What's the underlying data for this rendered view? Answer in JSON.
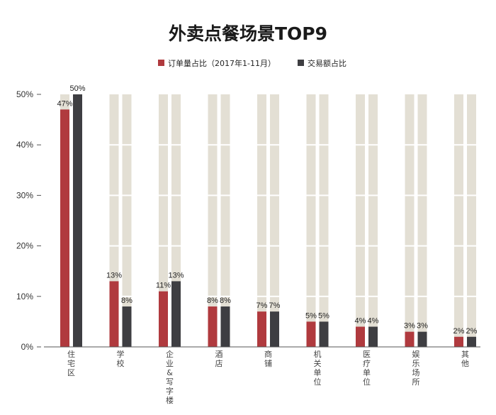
{
  "chart_data": {
    "type": "bar",
    "title": "外卖点餐场景TOP9",
    "categories": [
      "住宅区",
      "学校",
      "企业&写字楼",
      "酒店",
      "商铺",
      "机关单位",
      "医疗单位",
      "娱乐场所",
      "其他"
    ],
    "series": [
      {
        "name": "订单量占比（2017年1-11月）",
        "color": "#b03a3e",
        "values": [
          47,
          13,
          11,
          8,
          7,
          5,
          4,
          3,
          2
        ]
      },
      {
        "name": "交易额占比",
        "color": "#3e3e42",
        "values": [
          50,
          8,
          13,
          8,
          7,
          5,
          4,
          3,
          2
        ]
      }
    ],
    "data_labels": [
      [
        "47%",
        "13%",
        "11%",
        "8%",
        "7%",
        "5%",
        "4%",
        "3%",
        "2%"
      ],
      [
        "50%",
        "8%",
        "13%",
        "8%",
        "7%",
        "5%",
        "4%",
        "3%",
        "2%"
      ]
    ],
    "yticks": [
      "0%",
      "10%",
      "20%",
      "30%",
      "40%",
      "50%"
    ],
    "ylim": [
      0,
      50
    ],
    "background_track_color": "#e3dfd4",
    "legend_position": "top-center",
    "grid": false
  }
}
